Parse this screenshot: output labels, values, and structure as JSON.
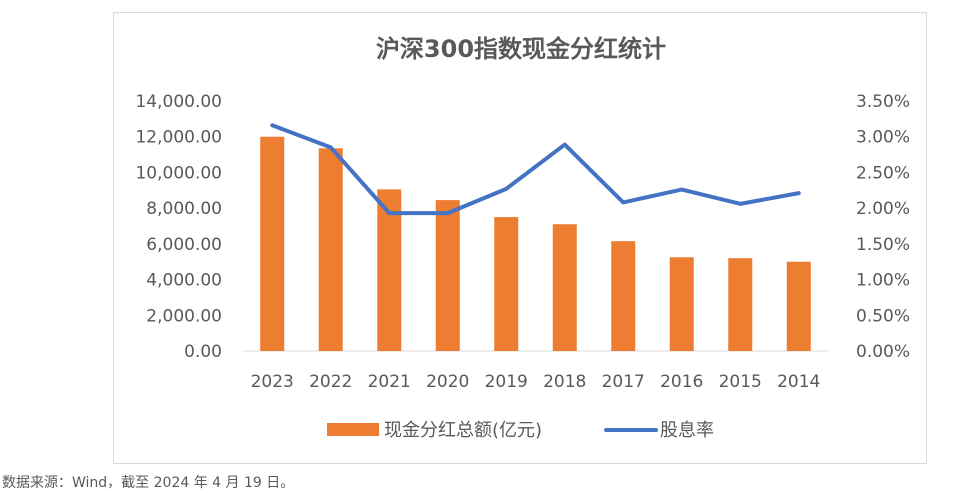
{
  "source_note": "数据来源：Wind，截至 2024 年 4 月 19 日。",
  "chart_data": {
    "type": "bar+line",
    "title": "沪深300指数现金分红统计",
    "categories": [
      "2023",
      "2022",
      "2021",
      "2020",
      "2019",
      "2018",
      "2017",
      "2016",
      "2015",
      "2014"
    ],
    "series": [
      {
        "name": "现金分红总额(亿元)",
        "type": "bar",
        "axis": "left",
        "color": "#ed7d31",
        "values": [
          12000,
          11350,
          9050,
          8450,
          7500,
          7100,
          6150,
          5250,
          5200,
          5000
        ]
      },
      {
        "name": "股息率",
        "type": "line",
        "axis": "right",
        "color": "#4472c4",
        "values": [
          0.0316,
          0.0285,
          0.0193,
          0.0193,
          0.0227,
          0.0289,
          0.0208,
          0.0226,
          0.0206,
          0.0221
        ]
      }
    ],
    "y_left": {
      "range": [
        0,
        14000
      ],
      "ticks": [
        0,
        2000,
        4000,
        6000,
        8000,
        10000,
        12000,
        14000
      ],
      "tick_labels": [
        "0.00",
        "2,000.00",
        "4,000.00",
        "6,000.00",
        "8,000.00",
        "10,000.00",
        "12,000.00",
        "14,000.00"
      ]
    },
    "y_right": {
      "range": [
        0,
        0.035
      ],
      "ticks": [
        0,
        0.005,
        0.01,
        0.015,
        0.02,
        0.025,
        0.03,
        0.035
      ],
      "tick_labels": [
        "0.00%",
        "0.50%",
        "1.00%",
        "1.50%",
        "2.00%",
        "2.50%",
        "3.00%",
        "3.50%"
      ]
    },
    "grid": false,
    "legend_position": "bottom"
  }
}
